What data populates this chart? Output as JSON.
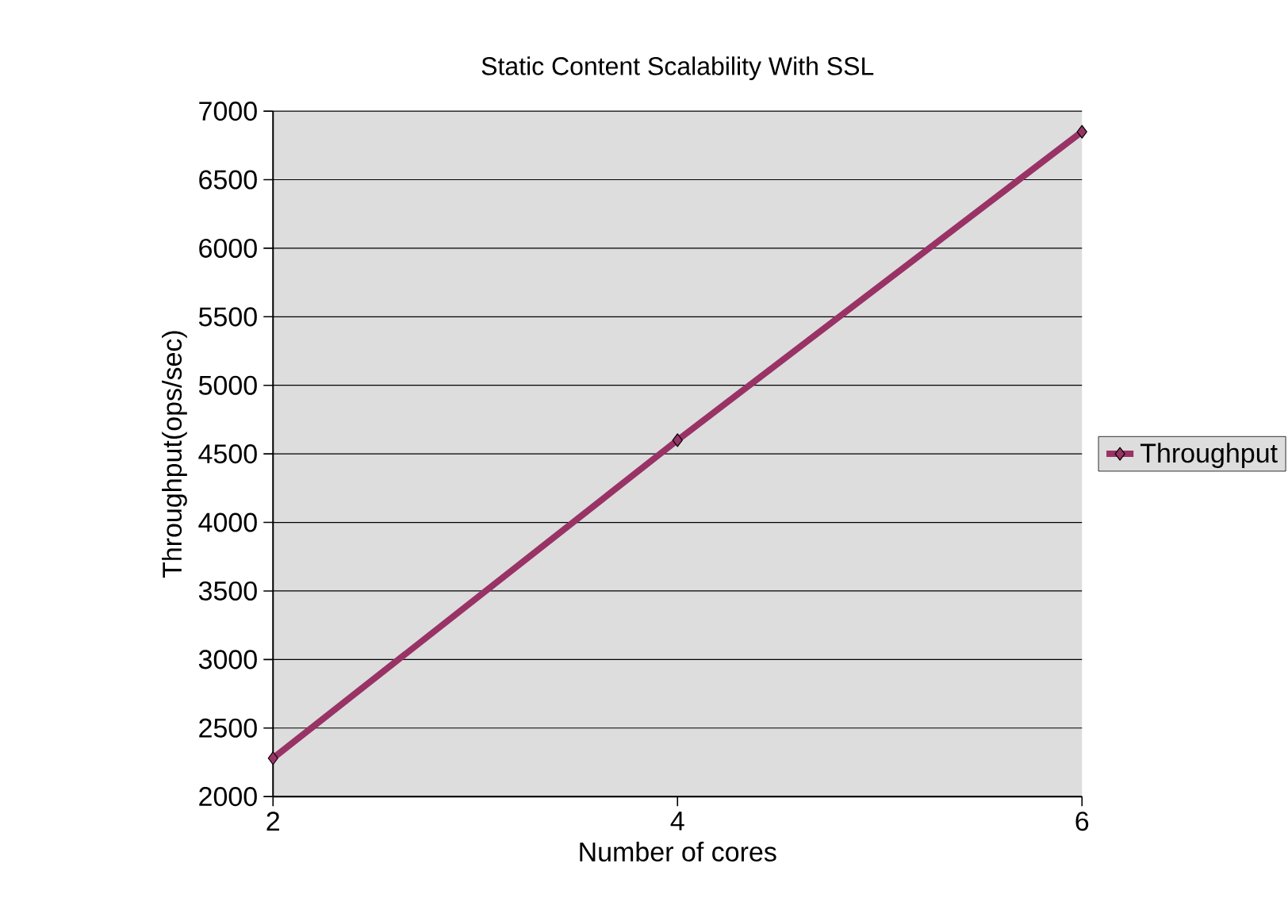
{
  "chart_data": {
    "type": "line",
    "title": "Static Content Scalability With SSL",
    "xlabel": "Number of cores",
    "ylabel": "Throughput(ops/sec)",
    "x": [
      2,
      4,
      6
    ],
    "series": [
      {
        "name": "Throughput",
        "color": "#993366",
        "values": [
          2280,
          4600,
          6850
        ]
      }
    ],
    "xlim": [
      2,
      6
    ],
    "xticks": [
      2,
      4,
      6
    ],
    "ylim": [
      2000,
      7000
    ],
    "yticks": [
      2000,
      2500,
      3000,
      3500,
      4000,
      4500,
      5000,
      5500,
      6000,
      6500,
      7000
    ],
    "grid": "y",
    "legend": "right",
    "marker": "diamond",
    "line_style": "solid"
  }
}
